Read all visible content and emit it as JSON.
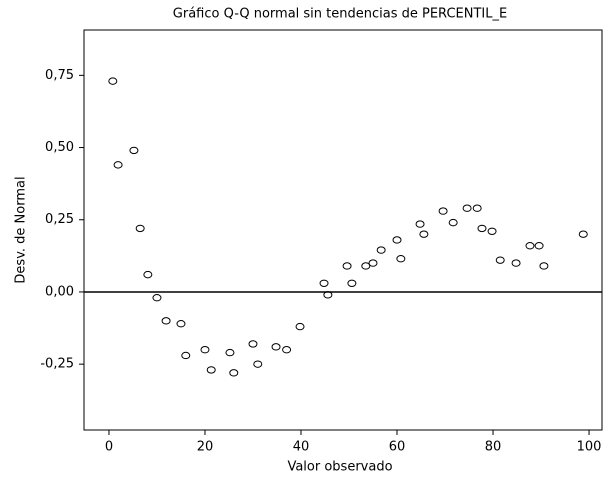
{
  "chart_data": {
    "type": "scatter",
    "title": "Gráfico Q-Q normal sin tendencias de PERCENTIL_E",
    "x_label": "Valor observado",
    "y_label": "Desv. de Normal",
    "x": [
      0.8,
      1.9,
      5.2,
      6.5,
      8.1,
      10,
      11.9,
      15,
      16,
      20,
      21.3,
      25.2,
      26,
      30,
      31,
      34.8,
      37,
      39.8,
      44.8,
      45.6,
      49.6,
      50.6,
      53.5,
      55,
      56.7,
      60,
      60.8,
      64.8,
      65.6,
      69.6,
      71.7,
      74.6,
      76.7,
      77.7,
      79.8,
      81.5,
      84.8,
      87.7,
      89.6,
      90.6,
      98.8
    ],
    "values": [
      0.73,
      0.44,
      0.49,
      0.22,
      0.06,
      -0.02,
      -0.1,
      -0.11,
      -0.22,
      -0.2,
      -0.27,
      -0.21,
      -0.28,
      -0.18,
      -0.25,
      -0.19,
      -0.2,
      -0.12,
      0.03,
      -0.01,
      0.09,
      0.03,
      0.09,
      0.1,
      0.145,
      0.18,
      0.115,
      0.235,
      0.2,
      0.28,
      0.24,
      0.29,
      0.29,
      0.22,
      0.21,
      0.11,
      0.1,
      0.16,
      0.16,
      0.09,
      0.2
    ],
    "color": "#000000",
    "xlim": [
      -5.2,
      102.7
    ],
    "xticks": [
      0,
      20,
      40,
      60,
      80,
      100
    ],
    "ylim": [
      -0.478,
      0.907
    ],
    "yticks": [
      {
        "value": -0.25,
        "label": "-0,25"
      },
      {
        "value": 0,
        "label": "0,00"
      },
      {
        "value": 0.25,
        "label": "0,25"
      },
      {
        "value": 0.5,
        "label": "0,50"
      },
      {
        "value": 0.75,
        "label": "0,75"
      }
    ],
    "hline": 0
  }
}
